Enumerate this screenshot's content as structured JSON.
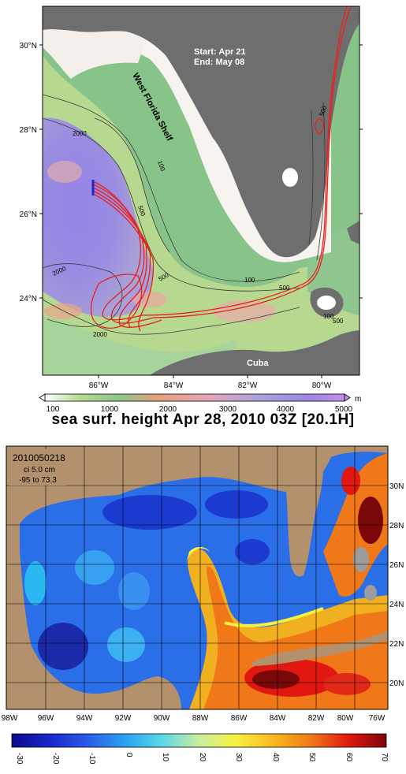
{
  "top_map": {
    "annotation": {
      "start": "Start: Apr 21",
      "end": "End: May 08"
    },
    "shelf_label": "West Florida Shelf",
    "place_label": "Cuba",
    "lat_ticks": [
      "30°N",
      "28°N",
      "26°N",
      "24°N"
    ],
    "lon_ticks": [
      "86°W",
      "84°W",
      "82°W",
      "80°W"
    ],
    "contour_labels": [
      "2000",
      "100",
      "500",
      "2000",
      "500",
      "100",
      "500",
      "2000",
      "500",
      "100",
      "500"
    ],
    "colorbar": {
      "unit": "m",
      "ticks": [
        "100",
        "1000",
        "2000",
        "3000",
        "4000",
        "5000"
      ]
    }
  },
  "bottom_map": {
    "title": "sea surf. height    Apr 28, 2010 03Z    [20.1H]",
    "info_id": "2010050218",
    "info_ci": "ci 5.0 cm",
    "info_range": "-95 to 73.3",
    "lat_ticks": [
      "30N",
      "28N",
      "26N",
      "24N",
      "22N",
      "20N"
    ],
    "lon_ticks": [
      "98W",
      "96W",
      "94W",
      "92W",
      "90W",
      "88W",
      "86W",
      "84W",
      "82W",
      "80W",
      "76W"
    ],
    "colorbar_ticks": [
      "-30",
      "-20",
      "-10",
      "0",
      "10",
      "20",
      "30",
      "40",
      "50",
      "60",
      "70"
    ]
  },
  "colors": {
    "land": "#6e6e6e",
    "ssh_land": "#b3916d",
    "trajectory": "#e8201c",
    "deep": "#9a86e6",
    "shelf": "#f6f1ee"
  }
}
